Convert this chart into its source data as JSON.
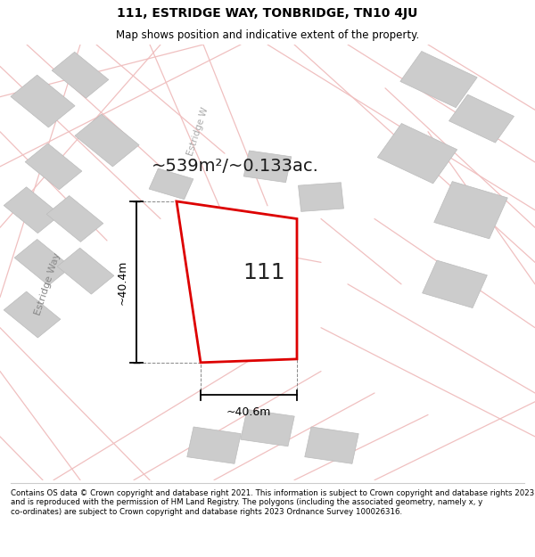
{
  "title": "111, ESTRIDGE WAY, TONBRIDGE, TN10 4JU",
  "subtitle": "Map shows position and indicative extent of the property.",
  "footer": "Contains OS data © Crown copyright and database right 2021. This information is subject to Crown copyright and database rights 2023 and is reproduced with the permission of HM Land Registry. The polygons (including the associated geometry, namely x, y co-ordinates) are subject to Crown copyright and database rights 2023 Ordnance Survey 100026316.",
  "area_label": "~539m²/~0.133ac.",
  "plot_number": "111",
  "dim_width": "~40.6m",
  "dim_height": "~40.4m",
  "map_bg_color": "#f7f7f7",
  "road_color": "#f0c0c0",
  "plot_edge_color": "#dd0000",
  "gray_block_color": "#cccccc",
  "gray_block_edge": "#bbbbbb",
  "street_label": "Estridge Way",
  "street_label2": "Estridge W",
  "title_fontsize": 10,
  "subtitle_fontsize": 8.5,
  "footer_fontsize": 6.2,
  "area_fontsize": 14,
  "plot_num_fontsize": 18,
  "dim_fontsize": 9,
  "street_fontsize": 8
}
